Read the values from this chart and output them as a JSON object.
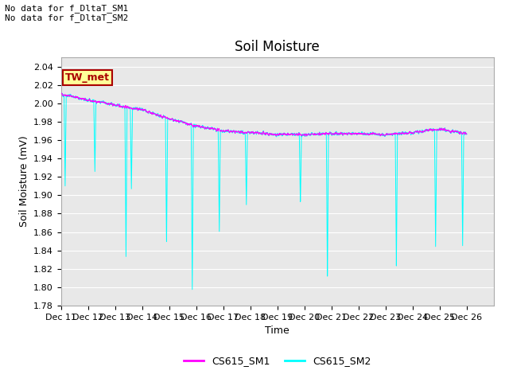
{
  "title": "Soil Moisture",
  "xlabel": "Time",
  "ylabel": "Soil Moisture (mV)",
  "ylim": [
    1.78,
    2.05
  ],
  "yticks": [
    1.78,
    1.8,
    1.82,
    1.84,
    1.86,
    1.88,
    1.9,
    1.92,
    1.94,
    1.96,
    1.98,
    2.0,
    2.02,
    2.04
  ],
  "xtick_labels": [
    "Dec 11",
    "Dec 12",
    "Dec 13",
    "Dec 14",
    "Dec 15",
    "Dec 16",
    "Dec 17",
    "Dec 18",
    "Dec 19",
    "Dec 20",
    "Dec 21",
    "Dec 22",
    "Dec 23",
    "Dec 24",
    "Dec 25",
    "Dec 26"
  ],
  "annotation_text": "No data for f_DltaT_SM1\nNo data for f_DltaT_SM2",
  "legend_label1": "CS615_SM1",
  "legend_label2": "CS615_SM2",
  "color_sm1": "#ff00ff",
  "color_sm2": "#00ffff",
  "tw_met_bg": "#ffff99",
  "tw_met_border": "#aa0000",
  "fig_bg_color": "#ffffff",
  "plot_bg_color": "#e8e8e8",
  "grid_color": "#ffffff",
  "title_fontsize": 12,
  "label_fontsize": 9,
  "tick_fontsize": 8,
  "annot_fontsize": 8
}
